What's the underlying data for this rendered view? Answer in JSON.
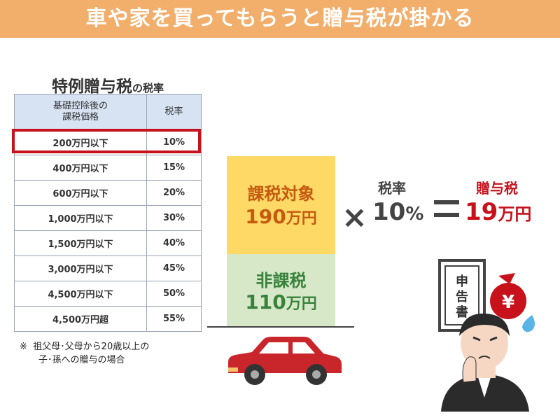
{
  "banner": {
    "title": "車や家を買ってもらうと贈与税が掛かる"
  },
  "table": {
    "title_main": "特例贈与税",
    "title_suffix": "の税率",
    "header": {
      "col1_line1": "基礎控除後の",
      "col1_line2": "課税価格",
      "col2": "税率"
    },
    "rows": [
      {
        "range": "200万円以下",
        "rate": "10%"
      },
      {
        "range": "400万円以下",
        "rate": "15%"
      },
      {
        "range": "600万円以下",
        "rate": "20%"
      },
      {
        "range": "1,000万円以下",
        "rate": "30%"
      },
      {
        "range": "1,500万円以下",
        "rate": "40%"
      },
      {
        "range": "3,000万円以下",
        "rate": "45%"
      },
      {
        "range": "4,500万円以下",
        "rate": "50%"
      },
      {
        "range": "4,500万円超",
        "rate": "55%"
      }
    ]
  },
  "note": {
    "mark": "※",
    "line1": "祖父母･父母から20歳以上の",
    "line2": "子･孫への贈与の場合"
  },
  "diagram": {
    "taxable_label": "課税対象",
    "taxable_amount_num": "190",
    "taxable_amount_unit": "万円",
    "nontaxable_label": "非課税",
    "nontaxable_amount_num": "110",
    "nontaxable_amount_unit": "万円",
    "times": "×",
    "rate_title": "税率",
    "rate_num": "10",
    "rate_pct": "%",
    "tax_title": "贈与税",
    "tax_num": "19",
    "tax_unit": "万円"
  },
  "illustration": {
    "document_text_1": "申",
    "document_text_2": "告",
    "document_text_3": "書",
    "bag_symbol": "¥"
  },
  "colors": {
    "banner": "#f2ae6b",
    "table_header": "#d7e3f3",
    "highlight": "#c8121b",
    "taxable_box": "#ffd966",
    "nontaxable_box": "#d7e8c9",
    "car": "#c9262c",
    "money_bag": "#c8121b"
  }
}
